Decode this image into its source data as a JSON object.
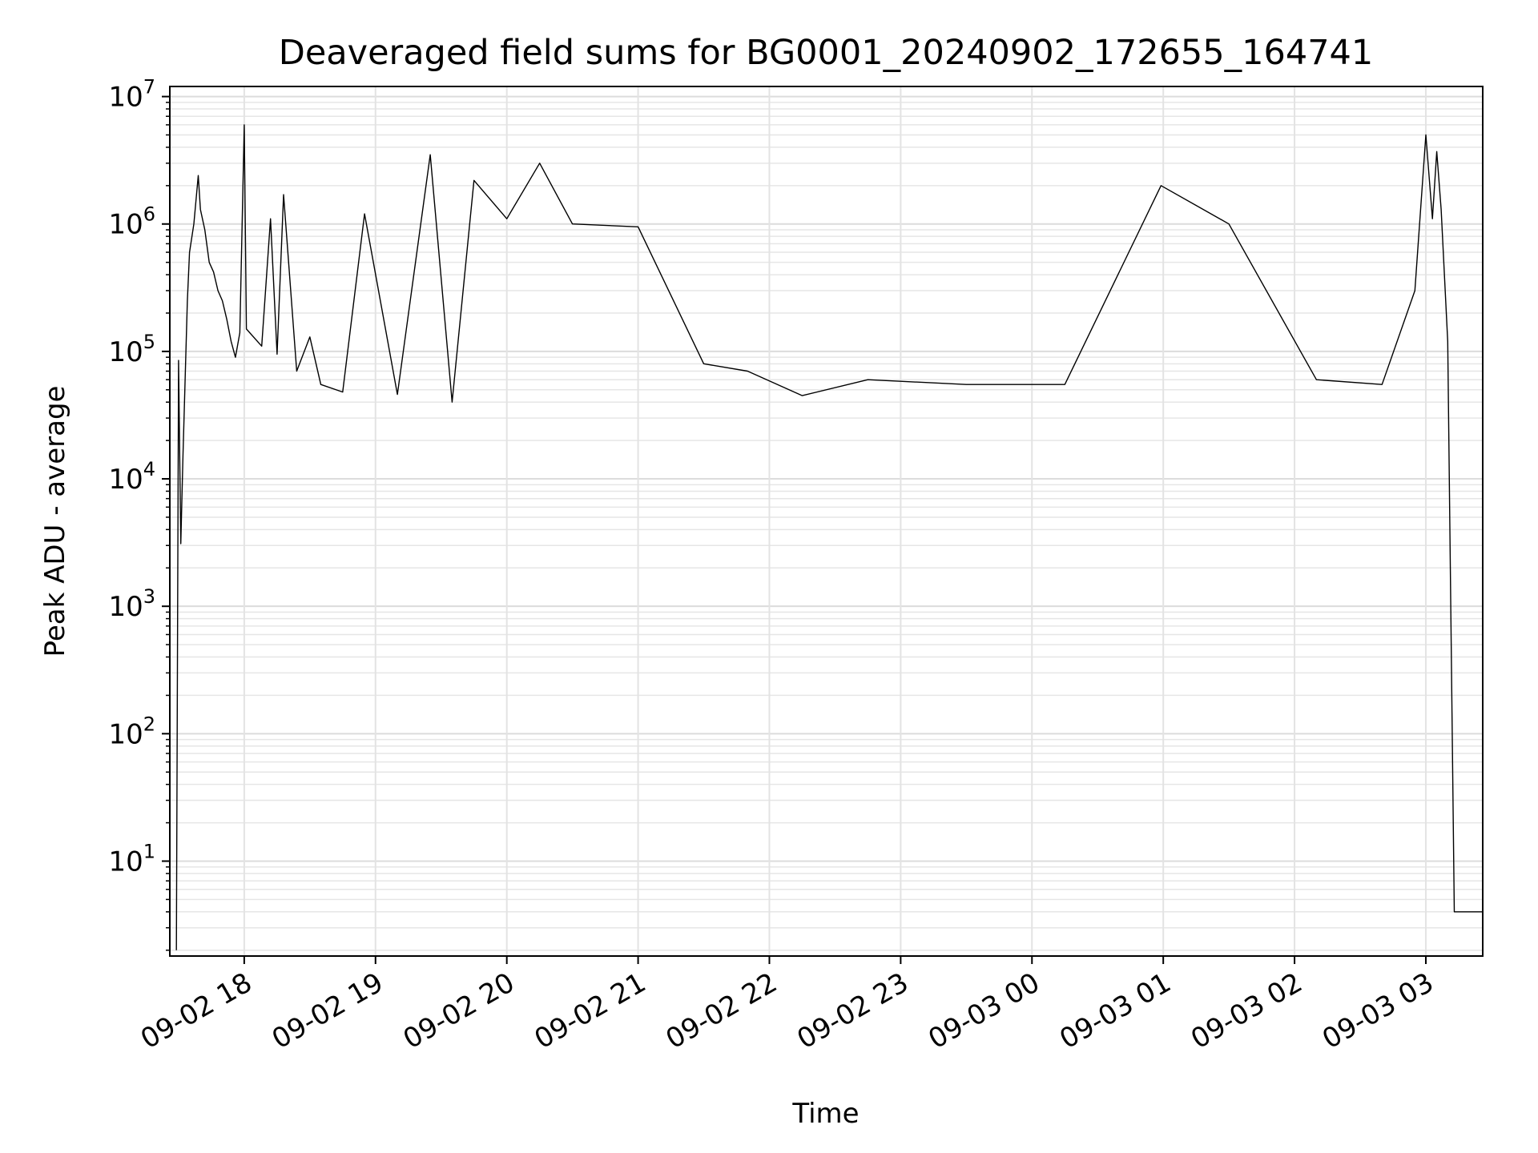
{
  "chart_data": {
    "type": "line",
    "title": "Deaveraged field sums for BG0001_20240902_172655_164741",
    "xlabel": "Time",
    "ylabel": "Peak ADU - average",
    "yscale": "log",
    "ylim": [
      1.8,
      12000000
    ],
    "xlim": [
      "2024-09-02 17:26",
      "2024-09-03 03:26"
    ],
    "grid": true,
    "x_ticks": [
      {
        "value": "2024-09-02 18:00",
        "label": "09-02 18"
      },
      {
        "value": "2024-09-02 19:00",
        "label": "09-02 19"
      },
      {
        "value": "2024-09-02 20:00",
        "label": "09-02 20"
      },
      {
        "value": "2024-09-02 21:00",
        "label": "09-02 21"
      },
      {
        "value": "2024-09-02 22:00",
        "label": "09-02 22"
      },
      {
        "value": "2024-09-02 23:00",
        "label": "09-02 23"
      },
      {
        "value": "2024-09-03 00:00",
        "label": "09-03 00"
      },
      {
        "value": "2024-09-03 01:00",
        "label": "09-03 01"
      },
      {
        "value": "2024-09-03 02:00",
        "label": "09-03 02"
      },
      {
        "value": "2024-09-03 03:00",
        "label": "09-03 03"
      }
    ],
    "y_ticks": [
      {
        "value": 10,
        "base": "10",
        "exp": "1"
      },
      {
        "value": 100,
        "base": "10",
        "exp": "2"
      },
      {
        "value": 1000,
        "base": "10",
        "exp": "3"
      },
      {
        "value": 10000,
        "base": "10",
        "exp": "4"
      },
      {
        "value": 100000,
        "base": "10",
        "exp": "5"
      },
      {
        "value": 1000000,
        "base": "10",
        "exp": "6"
      },
      {
        "value": 10000000,
        "base": "10",
        "exp": "7"
      }
    ],
    "series": [
      {
        "color": "#000000",
        "points": [
          [
            "2024-09-02 17:29",
            2
          ],
          [
            "2024-09-02 17:30",
            85000
          ],
          [
            "2024-09-02 17:31",
            3100
          ],
          [
            "2024-09-02 17:32",
            15000
          ],
          [
            "2024-09-02 17:33",
            60000
          ],
          [
            "2024-09-02 17:34",
            250000
          ],
          [
            "2024-09-02 17:35",
            600000
          ],
          [
            "2024-09-02 17:37",
            1000000
          ],
          [
            "2024-09-02 17:39",
            2400000
          ],
          [
            "2024-09-02 17:40",
            1300000
          ],
          [
            "2024-09-02 17:42",
            900000
          ],
          [
            "2024-09-02 17:44",
            500000
          ],
          [
            "2024-09-02 17:46",
            420000
          ],
          [
            "2024-09-02 17:48",
            300000
          ],
          [
            "2024-09-02 17:50",
            250000
          ],
          [
            "2024-09-02 17:52",
            180000
          ],
          [
            "2024-09-02 17:54",
            120000
          ],
          [
            "2024-09-02 17:56",
            90000
          ],
          [
            "2024-09-02 17:58",
            140000
          ],
          [
            "2024-09-02 18:00",
            6000000
          ],
          [
            "2024-09-02 18:01",
            150000
          ],
          [
            "2024-09-02 18:08",
            110000
          ],
          [
            "2024-09-02 18:12",
            1100000
          ],
          [
            "2024-09-02 18:15",
            95000
          ],
          [
            "2024-09-02 18:18",
            1700000
          ],
          [
            "2024-09-02 18:24",
            70000
          ],
          [
            "2024-09-02 18:30",
            130000
          ],
          [
            "2024-09-02 18:35",
            55000
          ],
          [
            "2024-09-02 18:45",
            48000
          ],
          [
            "2024-09-02 18:55",
            1200000
          ],
          [
            "2024-09-02 19:10",
            46000
          ],
          [
            "2024-09-02 19:25",
            3500000
          ],
          [
            "2024-09-02 19:35",
            40000
          ],
          [
            "2024-09-02 19:45",
            2200000
          ],
          [
            "2024-09-02 20:00",
            1100000
          ],
          [
            "2024-09-02 20:15",
            3000000
          ],
          [
            "2024-09-02 20:30",
            1000000
          ],
          [
            "2024-09-02 21:00",
            950000
          ],
          [
            "2024-09-02 21:30",
            80000
          ],
          [
            "2024-09-02 21:50",
            70000
          ],
          [
            "2024-09-02 22:15",
            45000
          ],
          [
            "2024-09-02 22:45",
            60000
          ],
          [
            "2024-09-02 23:30",
            55000
          ],
          [
            "2024-09-03 00:15",
            55000
          ],
          [
            "2024-09-03 00:59",
            2000000
          ],
          [
            "2024-09-03 01:30",
            1000000
          ],
          [
            "2024-09-03 02:10",
            60000
          ],
          [
            "2024-09-03 02:40",
            55000
          ],
          [
            "2024-09-03 02:55",
            300000
          ],
          [
            "2024-09-03 03:00",
            5000000
          ],
          [
            "2024-09-03 03:03",
            1100000
          ],
          [
            "2024-09-03 03:05",
            3700000
          ],
          [
            "2024-09-03 03:07",
            1300000
          ],
          [
            "2024-09-03 03:10",
            120000
          ],
          [
            "2024-09-03 03:13",
            4
          ],
          [
            "2024-09-03 03:26",
            4
          ]
        ]
      }
    ]
  }
}
